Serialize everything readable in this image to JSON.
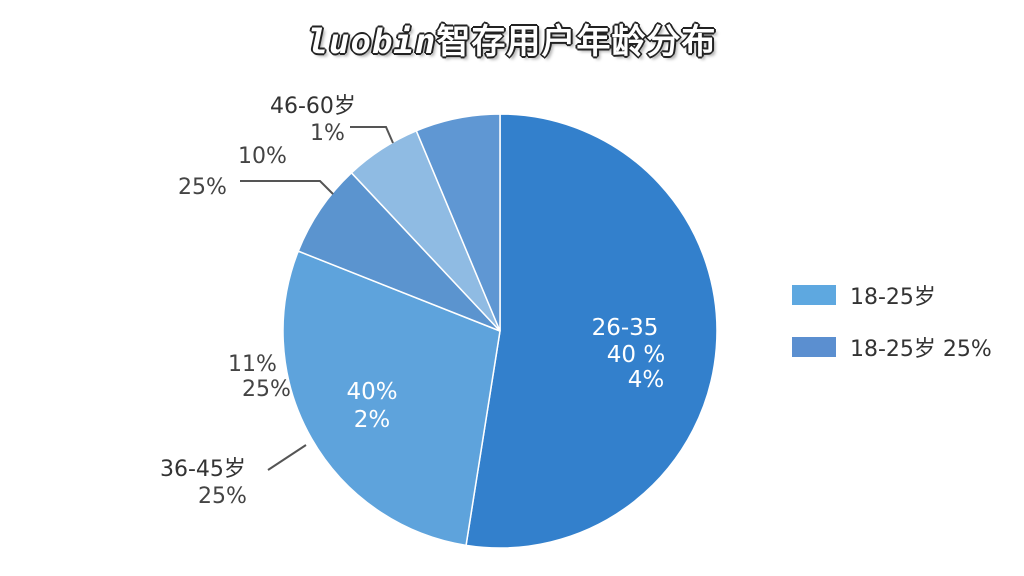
{
  "chart_data": {
    "type": "pie",
    "title_prefix": "luobin",
    "title_rest": "智存用户年龄分布",
    "slices": [
      {
        "id": "s1",
        "value": 52.5,
        "color": "#3380cc"
      },
      {
        "id": "s2",
        "value": 28.5,
        "color": "#5ea3dc"
      },
      {
        "id": "s3",
        "value": 7.0,
        "color": "#5b94cf"
      },
      {
        "id": "s4",
        "value": 5.7,
        "color": "#8fbbe3"
      },
      {
        "id": "s5",
        "value": 6.3,
        "color": "#5f97d3"
      }
    ],
    "labels": {
      "l_2635": "26-35",
      "l_2635_a": "40 %",
      "l_2635_b": "4%",
      "l_mid_a": "40%",
      "l_mid_b": "2%",
      "l_11": "11%",
      "l_25_left": "25%",
      "l_3645": "36-45岁",
      "l_3645_b": "25%",
      "l_25_upper": "25%",
      "l_10": "10%",
      "l_4660": "46-60岁",
      "l_1": "1%"
    },
    "legend": [
      {
        "label": "18-25岁",
        "color": "#5ea8e0"
      },
      {
        "label": "18-25岁 25%",
        "color": "#5b8fd0"
      }
    ]
  }
}
